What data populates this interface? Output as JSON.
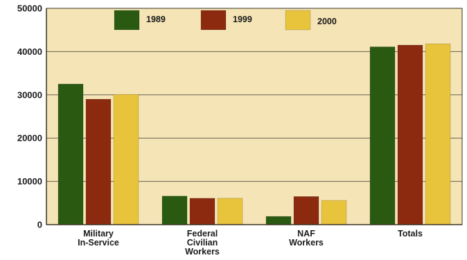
{
  "chart_data": {
    "type": "bar",
    "title": "",
    "xlabel": "",
    "ylabel": "",
    "categories": [
      [
        "Military",
        "In-Service"
      ],
      [
        "Federal",
        "Civilian",
        "Workers"
      ],
      [
        "NAF",
        "Workers"
      ],
      [
        "Totals"
      ]
    ],
    "series": [
      {
        "name": "1989",
        "color": "#2a5a12",
        "values": [
          32500,
          6600,
          1900,
          41100
        ]
      },
      {
        "name": "1999",
        "color": "#8c2a10",
        "values": [
          29000,
          6100,
          6500,
          41500
        ]
      },
      {
        "name": "2000",
        "color": "#e8c33c",
        "values": [
          30100,
          6100,
          5600,
          41800
        ]
      }
    ],
    "ylim": [
      0,
      50000
    ],
    "yticks": [
      0,
      10000,
      20000,
      30000,
      40000,
      50000
    ],
    "grid": true,
    "legend_position": "top",
    "colors": {
      "plot_background": "#f4e4b6",
      "gridline": "#6b6250",
      "axis": "#3a3325"
    }
  }
}
